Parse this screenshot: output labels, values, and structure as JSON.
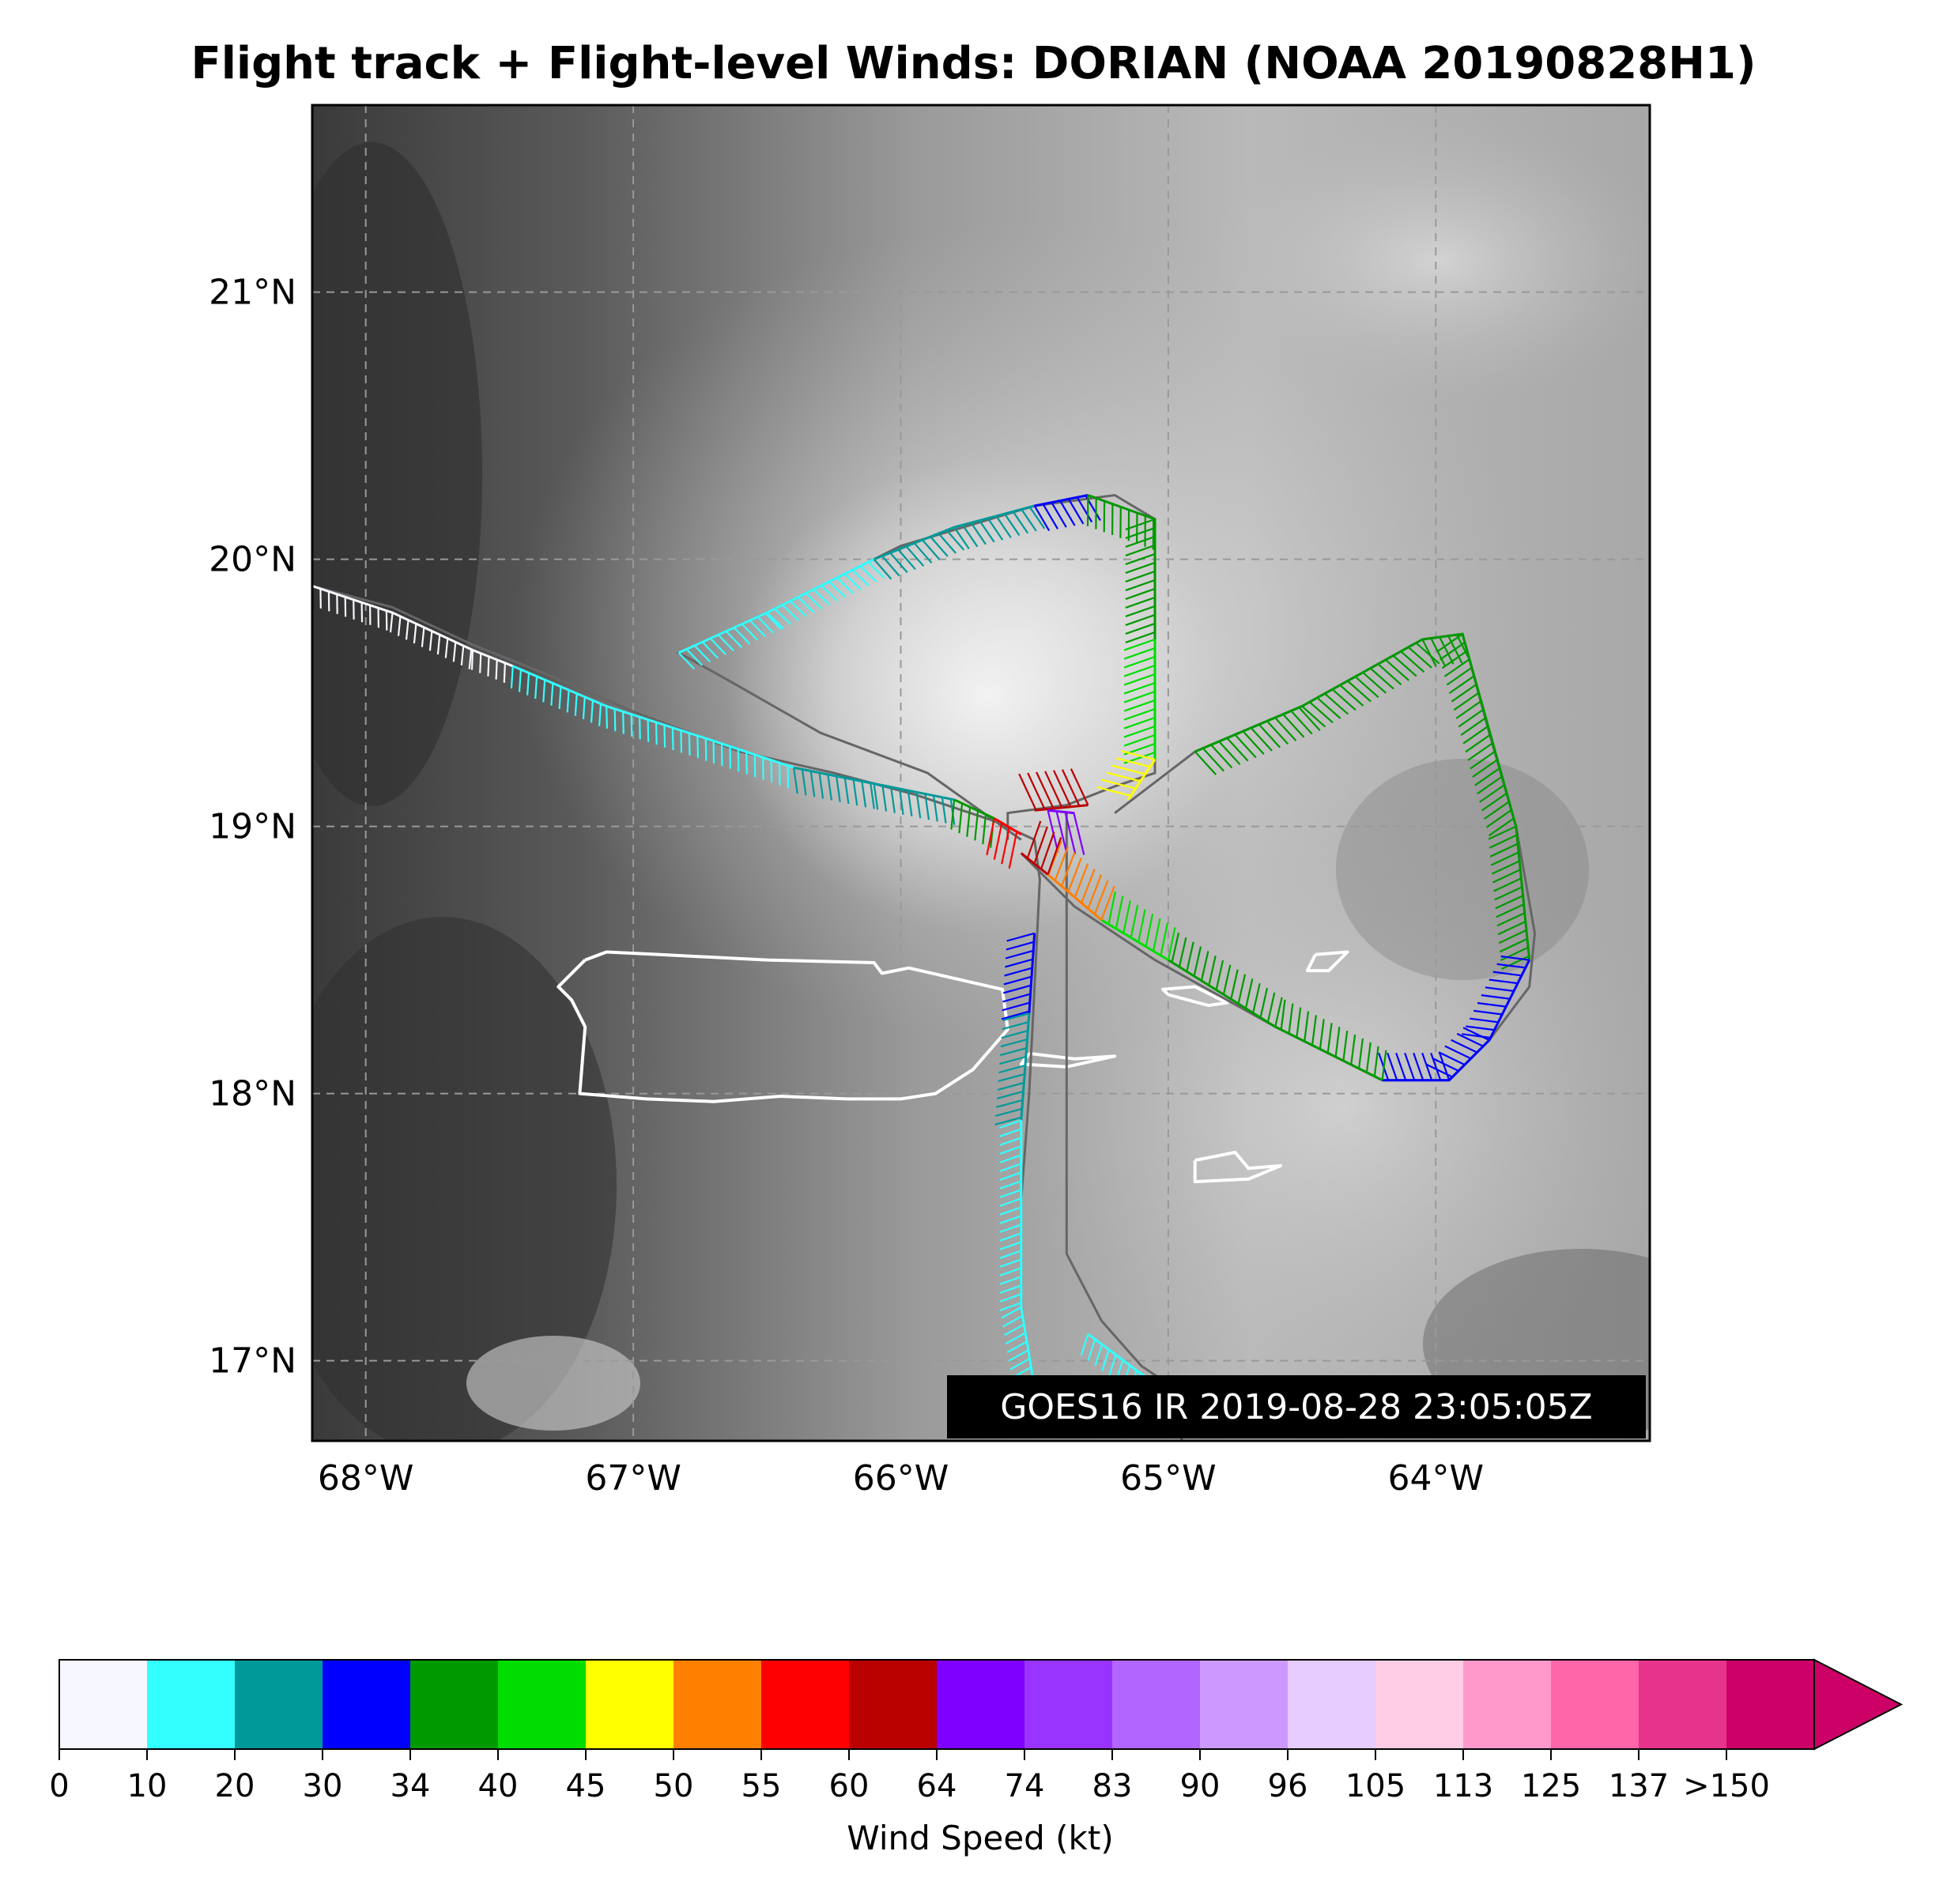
{
  "title": "Flight track + Flight-level Winds: DORIAN (NOAA 20190828H1)",
  "map": {
    "lon_range": [
      -68.2,
      -63.2
    ],
    "lat_range": [
      16.7,
      21.7
    ],
    "lon_ticks": [
      {
        "value": -68,
        "label": "68°W"
      },
      {
        "value": -67,
        "label": "67°W"
      },
      {
        "value": -66,
        "label": "66°W"
      },
      {
        "value": -65,
        "label": "65°W"
      },
      {
        "value": -64,
        "label": "64°W"
      }
    ],
    "lat_ticks": [
      {
        "value": 21,
        "label": "21°N"
      },
      {
        "value": 20,
        "label": "20°N"
      },
      {
        "value": 19,
        "label": "19°N"
      },
      {
        "value": 18,
        "label": "18°N"
      },
      {
        "value": 17,
        "label": "17°N"
      }
    ],
    "grid": true,
    "background": "GOES16 infrared satellite imagery (grayscale)",
    "timestamp": "GOES16 IR 2019-08-28 23:05:05Z",
    "coastline_color": "#ffffff",
    "track_color": "#666666",
    "coastlines": [
      {
        "name": "Puerto Rico",
        "points": [
          [
            -67.18,
            18.5
          ],
          [
            -67.1,
            18.53
          ],
          [
            -66.9,
            18.52
          ],
          [
            -66.5,
            18.5
          ],
          [
            -66.1,
            18.49
          ],
          [
            -66.07,
            18.45
          ],
          [
            -65.97,
            18.47
          ],
          [
            -65.62,
            18.39
          ],
          [
            -65.6,
            18.24
          ],
          [
            -65.73,
            18.09
          ],
          [
            -65.87,
            18.0
          ],
          [
            -66.0,
            17.98
          ],
          [
            -66.2,
            17.98
          ],
          [
            -66.45,
            17.99
          ],
          [
            -66.7,
            17.97
          ],
          [
            -66.95,
            17.98
          ],
          [
            -67.2,
            18.0
          ],
          [
            -67.18,
            18.25
          ],
          [
            -67.23,
            18.35
          ],
          [
            -67.28,
            18.4
          ],
          [
            -67.18,
            18.5
          ]
        ]
      },
      {
        "name": "Culebra/Vieques",
        "points": [
          [
            -65.52,
            18.15
          ],
          [
            -65.35,
            18.13
          ],
          [
            -65.2,
            18.14
          ],
          [
            -65.38,
            18.1
          ],
          [
            -65.55,
            18.11
          ],
          [
            -65.52,
            18.15
          ]
        ]
      },
      {
        "name": "St Thomas",
        "points": [
          [
            -65.0,
            18.37
          ],
          [
            -64.85,
            18.33
          ],
          [
            -64.78,
            18.34
          ],
          [
            -64.9,
            18.4
          ],
          [
            -65.02,
            18.39
          ],
          [
            -65.0,
            18.37
          ]
        ]
      },
      {
        "name": "Virgin Gorda",
        "points": [
          [
            -64.45,
            18.52
          ],
          [
            -64.33,
            18.53
          ],
          [
            -64.4,
            18.46
          ],
          [
            -64.48,
            18.46
          ],
          [
            -64.45,
            18.52
          ]
        ]
      },
      {
        "name": "St Croix",
        "points": [
          [
            -64.9,
            17.75
          ],
          [
            -64.75,
            17.78
          ],
          [
            -64.7,
            17.72
          ],
          [
            -64.58,
            17.73
          ],
          [
            -64.7,
            17.68
          ],
          [
            -64.9,
            17.67
          ],
          [
            -64.9,
            17.75
          ]
        ]
      }
    ],
    "flight_tracks": [
      {
        "name": "inbound",
        "points": [
          [
            -68.2,
            19.9
          ],
          [
            -67.9,
            19.82
          ],
          [
            -67.6,
            19.68
          ],
          [
            -67.3,
            19.56
          ],
          [
            -67.0,
            19.43
          ],
          [
            -66.6,
            19.28
          ],
          [
            -66.25,
            19.2
          ],
          [
            -65.95,
            19.12
          ],
          [
            -65.65,
            19.02
          ],
          [
            -65.5,
            18.95
          ]
        ]
      },
      {
        "name": "leg-west-loop",
        "points": [
          [
            -65.55,
            18.95
          ],
          [
            -65.9,
            19.2
          ],
          [
            -66.3,
            19.35
          ],
          [
            -66.65,
            19.55
          ],
          [
            -66.83,
            19.65
          ],
          [
            -66.5,
            19.8
          ],
          [
            -66.0,
            20.05
          ],
          [
            -65.5,
            20.2
          ],
          [
            -65.2,
            20.24
          ],
          [
            -65.05,
            20.15
          ],
          [
            -65.05,
            19.8
          ],
          [
            -65.05,
            19.2
          ],
          [
            -65.2,
            19.15
          ],
          [
            -65.38,
            19.08
          ],
          [
            -65.6,
            19.05
          ],
          [
            -65.6,
            18.95
          ]
        ]
      },
      {
        "name": "leg-east-loop",
        "points": [
          [
            -65.2,
            19.05
          ],
          [
            -64.9,
            19.28
          ],
          [
            -64.5,
            19.45
          ],
          [
            -64.05,
            19.7
          ],
          [
            -63.9,
            19.72
          ],
          [
            -63.8,
            19.35
          ],
          [
            -63.7,
            19.0
          ],
          [
            -63.63,
            18.6
          ],
          [
            -63.65,
            18.4
          ],
          [
            -63.8,
            18.2
          ],
          [
            -63.95,
            18.05
          ],
          [
            -64.2,
            18.05
          ],
          [
            -64.6,
            18.25
          ],
          [
            -65.05,
            18.5
          ],
          [
            -65.35,
            18.7
          ],
          [
            -65.55,
            18.9
          ]
        ]
      },
      {
        "name": "south-leg",
        "points": [
          [
            -65.38,
            19.05
          ],
          [
            -65.38,
            18.65
          ],
          [
            -65.38,
            17.9
          ],
          [
            -65.38,
            17.4
          ],
          [
            -65.25,
            17.15
          ],
          [
            -65.1,
            16.98
          ],
          [
            -64.95,
            16.88
          ],
          [
            -64.95,
            16.7
          ]
        ]
      },
      {
        "name": "south-leg-return",
        "points": [
          [
            -65.5,
            16.9
          ],
          [
            -65.55,
            17.2
          ],
          [
            -65.55,
            17.6
          ],
          [
            -65.52,
            18.0
          ],
          [
            -65.5,
            18.4
          ],
          [
            -65.48,
            18.8
          ],
          [
            -65.5,
            18.95
          ]
        ]
      }
    ],
    "wind_segments": [
      {
        "kt": 8,
        "points": [
          [
            -68.2,
            19.9
          ],
          [
            -67.9,
            19.8
          ],
          [
            -67.6,
            19.66
          ],
          [
            -67.45,
            19.6
          ]
        ]
      },
      {
        "kt": 15,
        "points": [
          [
            -67.45,
            19.6
          ],
          [
            -67.1,
            19.45
          ],
          [
            -66.7,
            19.32
          ],
          [
            -66.4,
            19.22
          ]
        ]
      },
      {
        "kt": 25,
        "points": [
          [
            -66.4,
            19.22
          ],
          [
            -66.1,
            19.16
          ],
          [
            -65.8,
            19.1
          ]
        ]
      },
      {
        "kt": 35,
        "points": [
          [
            -65.8,
            19.1
          ],
          [
            -65.65,
            19.03
          ]
        ]
      },
      {
        "kt": 55,
        "points": [
          [
            -65.65,
            19.03
          ],
          [
            -65.55,
            18.97
          ]
        ]
      },
      {
        "kt": 15,
        "points": [
          [
            -66.83,
            19.65
          ],
          [
            -66.5,
            19.8
          ],
          [
            -66.1,
            20.0
          ]
        ]
      },
      {
        "kt": 25,
        "points": [
          [
            -66.1,
            20.0
          ],
          [
            -65.8,
            20.12
          ],
          [
            -65.5,
            20.2
          ]
        ]
      },
      {
        "kt": 32,
        "points": [
          [
            -65.5,
            20.2
          ],
          [
            -65.3,
            20.24
          ]
        ]
      },
      {
        "kt": 38,
        "points": [
          [
            -65.3,
            20.24
          ],
          [
            -65.05,
            20.15
          ],
          [
            -65.05,
            19.7
          ]
        ]
      },
      {
        "kt": 42,
        "points": [
          [
            -65.05,
            19.7
          ],
          [
            -65.05,
            19.25
          ]
        ]
      },
      {
        "kt": 48,
        "points": [
          [
            -65.05,
            19.25
          ],
          [
            -65.15,
            19.1
          ]
        ]
      },
      {
        "kt": 62,
        "points": [
          [
            -65.3,
            19.08
          ],
          [
            -65.5,
            19.06
          ]
        ]
      },
      {
        "kt": 70,
        "points": [
          [
            -65.45,
            19.06
          ],
          [
            -65.35,
            19.05
          ]
        ]
      },
      {
        "kt": 38,
        "points": [
          [
            -64.9,
            19.28
          ],
          [
            -64.5,
            19.45
          ],
          [
            -64.05,
            19.7
          ]
        ]
      },
      {
        "kt": 36,
        "points": [
          [
            -64.05,
            19.7
          ],
          [
            -63.9,
            19.72
          ],
          [
            -63.7,
            19.0
          ],
          [
            -63.65,
            18.5
          ]
        ]
      },
      {
        "kt": 32,
        "points": [
          [
            -63.65,
            18.5
          ],
          [
            -63.8,
            18.2
          ],
          [
            -63.95,
            18.05
          ],
          [
            -64.2,
            18.05
          ]
        ]
      },
      {
        "kt": 36,
        "points": [
          [
            -64.2,
            18.05
          ],
          [
            -64.6,
            18.25
          ],
          [
            -65.0,
            18.5
          ]
        ]
      },
      {
        "kt": 44,
        "points": [
          [
            -65.0,
            18.5
          ],
          [
            -65.25,
            18.65
          ]
        ]
      },
      {
        "kt": 52,
        "points": [
          [
            -65.25,
            18.65
          ],
          [
            -65.45,
            18.82
          ]
        ]
      },
      {
        "kt": 60,
        "points": [
          [
            -65.45,
            18.82
          ],
          [
            -65.55,
            18.9
          ]
        ]
      },
      {
        "kt": 32,
        "points": [
          [
            -65.5,
            18.6
          ],
          [
            -65.52,
            18.3
          ]
        ]
      },
      {
        "kt": 28,
        "points": [
          [
            -65.52,
            18.3
          ],
          [
            -65.55,
            17.9
          ]
        ]
      },
      {
        "kt": 15,
        "points": [
          [
            -65.55,
            17.9
          ],
          [
            -65.55,
            17.2
          ],
          [
            -65.5,
            16.9
          ]
        ]
      },
      {
        "kt": 15,
        "points": [
          [
            -65.3,
            17.1
          ],
          [
            -65.1,
            16.95
          ],
          [
            -64.95,
            16.85
          ]
        ]
      }
    ]
  },
  "colorbar": {
    "label": "Wind Speed (kt)",
    "tick_labels": [
      "0",
      "10",
      "20",
      "30",
      "34",
      "40",
      "45",
      "50",
      "55",
      "60",
      "64",
      "74",
      "83",
      "90",
      "96",
      "105",
      "113",
      "125",
      "137",
      ">150"
    ],
    "colors": [
      "#f7f8ff",
      "#33ffff",
      "#009999",
      "#0000ff",
      "#009900",
      "#00dd00",
      "#ffff00",
      "#ff7f00",
      "#ff0000",
      "#bb0000",
      "#7f00ff",
      "#9933ff",
      "#b366ff",
      "#cc99ff",
      "#e6ccff",
      "#ffcce6",
      "#ff99cc",
      "#ff66aa",
      "#e6338c",
      "#cc0066"
    ],
    "extend_color": "#cc0066"
  }
}
